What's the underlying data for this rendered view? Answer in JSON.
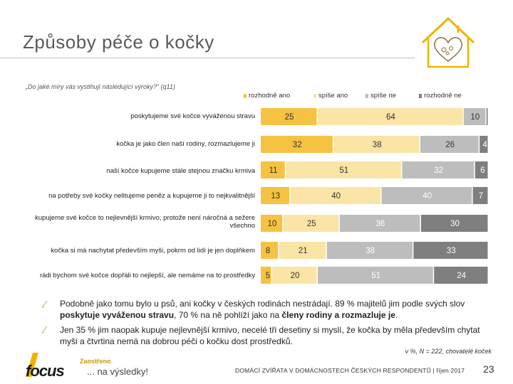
{
  "page": {
    "title": "Způsoby péče o kočky",
    "question": "„Do jaké míry vás vystihují následující výroky?“ (q11)",
    "footnote": "v %, N = 222, chovatelé koček",
    "footer": "DOMÁCÍ ZVÍŘATA V DOMÁCNOSTECH ČESKÝCH RESPONDENTŮ | říjen 2017",
    "page_number": "23",
    "logo_text": "focus",
    "tagline_top": "Zaostřeno",
    "tagline_bottom": "... na výsledky!"
  },
  "notes": [
    {
      "t1": "Podobně jako tomu bylo u psů, ani kočky v českých rodinách nestrádají. 89 % majitelů jim podle svých slov ",
      "b1": "poskytuje vyváženou stravu",
      "t2": ", 70 % na ně pohlíží jako na ",
      "b2": "členy rodiny a rozmazluje je",
      "t3": "."
    },
    {
      "t1": "Jen 35 % jim naopak kupuje nejlevnější krmivo, necelé tři desetiny si myslí, že kočka by měla především chytat myši a čtvrtina nemá na dobrou péči o kočku dost prostředků.",
      "b1": "",
      "t2": "",
      "b2": "",
      "t3": ""
    }
  ],
  "colors": {
    "rozhodne_ano": "#f5c242",
    "spise_ano": "#fbe5a6",
    "spise_ne": "#bdbdbd",
    "rozhodne_ne": "#7f7f7f",
    "accent": "#f0b400"
  },
  "chart_data": {
    "type": "bar",
    "orientation": "horizontal",
    "stacked": true,
    "xlim": [
      0,
      100
    ],
    "legend_position": "top",
    "categories": [
      "poskytujeme své kočce vyváženou stravu",
      "kočka je jako člen naší rodiny, rozmazlujeme ji",
      "naší kočce kupujeme stále stejnou značku krmiva",
      "na potřeby své kočky nelitujeme peněz a kupujeme ji to nejkvalitnější",
      "kupujeme své kočce to nejlevnější krmivo, protože není náročná a sežere všechno",
      "kočka si má nachytat především myši, pokrm od lidí je jen doplňkem",
      "rádi bychom své kočce dopřáli to nejlepší, ale nemáme na to prostředky"
    ],
    "series": [
      {
        "name": "rozhodně ano",
        "values": [
          25,
          32,
          11,
          13,
          10,
          8,
          5
        ],
        "labels": [
          "25",
          "32",
          "11",
          "13",
          "10",
          "8",
          "5"
        ]
      },
      {
        "name": "spíše ano",
        "values": [
          64,
          38,
          51,
          40,
          25,
          21,
          20
        ],
        "labels": [
          "64",
          "38",
          "51",
          "40",
          "25",
          "21",
          "20"
        ]
      },
      {
        "name": "spíše ne",
        "values": [
          10,
          26,
          32,
          40,
          36,
          38,
          51
        ],
        "labels": [
          "10",
          "26",
          "32",
          "40",
          "36",
          "38",
          "51"
        ]
      },
      {
        "name": "rozhodně ne",
        "values": [
          1,
          4,
          6,
          7,
          30,
          33,
          24
        ],
        "labels": [
          "",
          "4",
          "6",
          "7",
          "30",
          "33",
          "24"
        ]
      }
    ]
  }
}
